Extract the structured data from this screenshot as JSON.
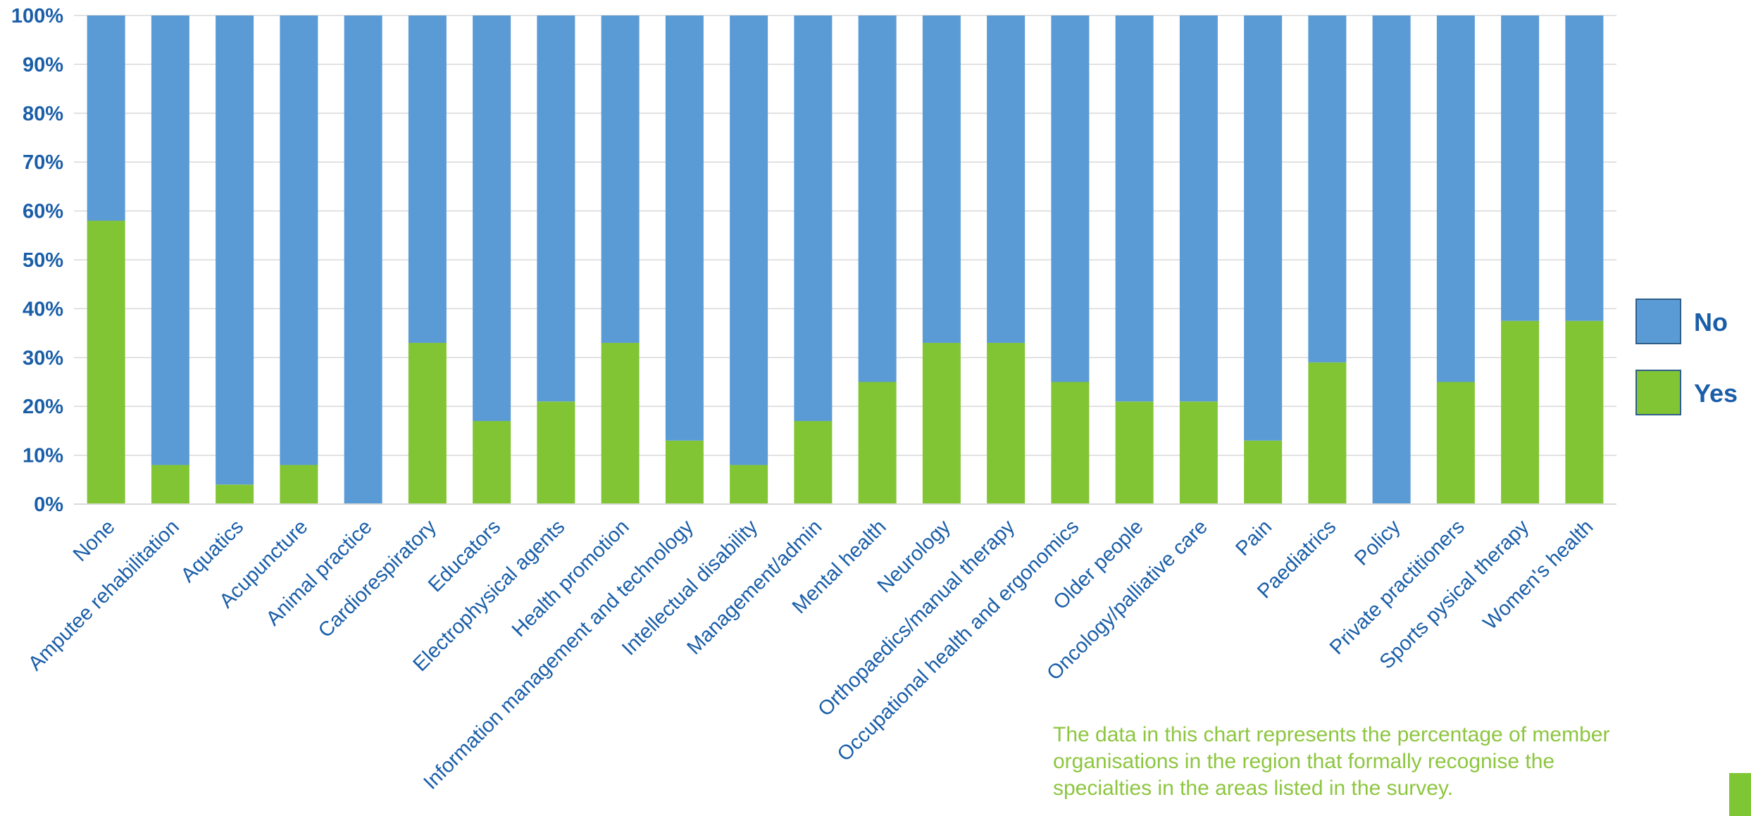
{
  "chart_data": {
    "type": "bar",
    "stacked": true,
    "categories": [
      "None",
      "Amputee rehabilitation",
      "Aquatics",
      "Acupuncture",
      "Animal practice",
      "Cardiorespiratory",
      "Educators",
      "Electrophysical agents",
      "Health promotion",
      "Information management and technology",
      "Intellectual disability",
      "Management/admin",
      "Mental health",
      "Neurology",
      "Orthopaedics/manual therapy",
      "Occupational health and ergonomics",
      "Older people",
      "Oncology/palliative care",
      "Pain",
      "Paediatrics",
      "Policy",
      "Private practitioners",
      "Sports pysical therapy",
      "Women's health"
    ],
    "series": [
      {
        "name": "Yes",
        "color": "#82c534",
        "values": [
          58,
          8,
          4,
          8,
          0,
          33,
          17,
          21,
          33,
          13,
          8,
          17,
          25,
          33,
          33,
          25,
          21,
          21,
          13,
          29,
          0,
          25,
          37.5,
          37.5
        ]
      },
      {
        "name": "No",
        "color": "#5b9bd5",
        "values": [
          42,
          92,
          96,
          92,
          100,
          67,
          83,
          79,
          67,
          87,
          92,
          83,
          75,
          67,
          67,
          75,
          79,
          79,
          87,
          71,
          100,
          75,
          62.5,
          62.5
        ]
      }
    ],
    "ylim": [
      0,
      100
    ],
    "yticks": [
      "0%",
      "10%",
      "20%",
      "30%",
      "40%",
      "50%",
      "60%",
      "70%",
      "80%",
      "90%",
      "100%"
    ],
    "grid": true,
    "legend_position": "right",
    "legend": [
      {
        "label": "No",
        "color": "#5b9bd5"
      },
      {
        "label": "Yes",
        "color": "#82c534"
      }
    ]
  },
  "note": "The data in this chart represents the percentage of member organisations in the region that formally recognise the specialties in the areas listed in the survey."
}
